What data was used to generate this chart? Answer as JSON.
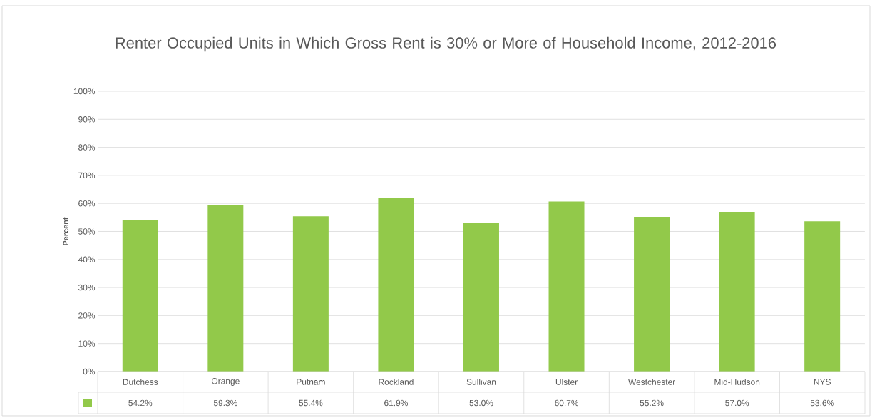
{
  "chart_data": {
    "type": "bar",
    "title": "Renter Occupied Units in Which Gross Rent is 30% or More of Household Income, 2012-2016",
    "ylabel": "Percent",
    "categories": [
      "Dutchess",
      "Orange",
      "Putnam",
      "Rockland",
      "Sullivan",
      "Ulster",
      "Westchester",
      "Mid-Hudson",
      "NYS"
    ],
    "values": [
      54.2,
      59.3,
      55.4,
      61.9,
      53.0,
      60.7,
      55.2,
      57.0,
      53.6
    ],
    "value_labels": [
      "54.2%",
      "59.3%",
      "55.4%",
      "61.9%",
      "53.0%",
      "60.7%",
      "55.2%",
      "57.0%",
      "53.6%"
    ],
    "color": "#92c94a",
    "ylim": [
      0,
      100
    ],
    "yticks": [
      {
        "value": 0,
        "label": "0%"
      },
      {
        "value": 10,
        "label": "10%"
      },
      {
        "value": 20,
        "label": "20%"
      },
      {
        "value": 30,
        "label": "30%"
      },
      {
        "value": 40,
        "label": "40%"
      },
      {
        "value": 50,
        "label": "50%"
      },
      {
        "value": 60,
        "label": "60%"
      },
      {
        "value": 70,
        "label": "70%"
      },
      {
        "value": 80,
        "label": "80%"
      },
      {
        "value": 90,
        "label": "90%"
      },
      {
        "value": 100,
        "label": "100%"
      }
    ],
    "grid": "y"
  }
}
